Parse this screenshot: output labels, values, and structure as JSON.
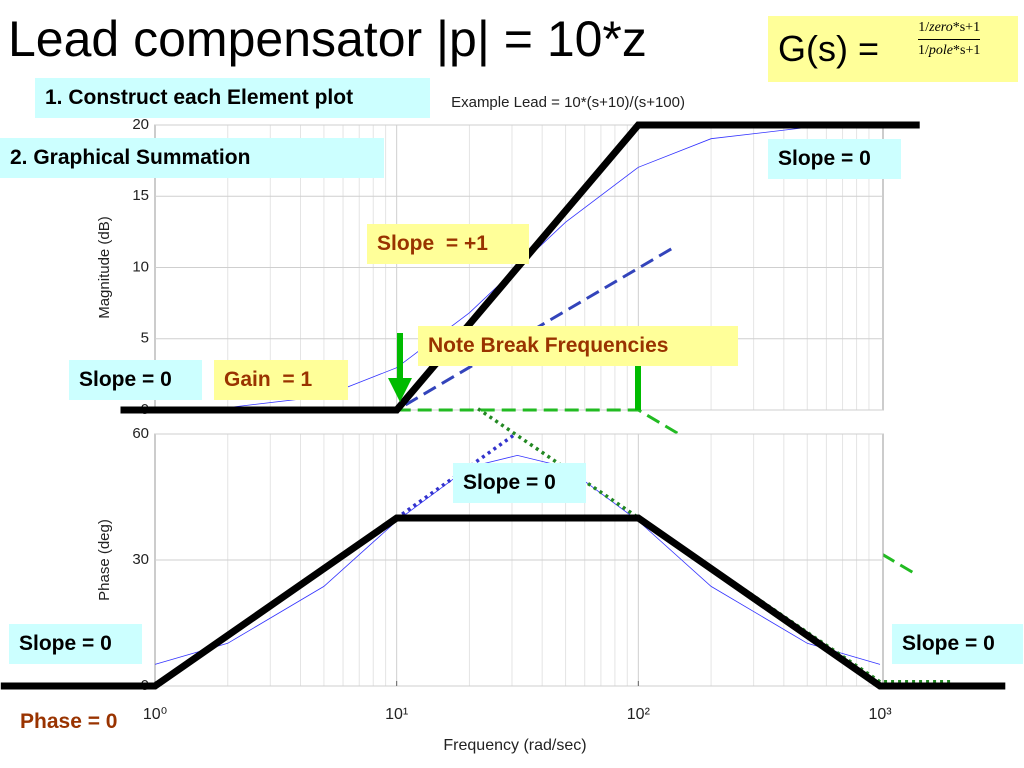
{
  "slide": {
    "title": "Lead compensator |p| = 10*z",
    "formula": {
      "lhs": "G(s) =",
      "numerator": [
        "1",
        "zero",
        "*s+1"
      ],
      "denominator": [
        "1",
        "pole",
        "*s+1"
      ]
    },
    "callouts": [
      "1. Construct each Element plot",
      "2. Graphical Summation",
      "Slope = 0",
      "Slope  = +1",
      "Note Break Frequencies",
      "Slope = 0",
      "Gain  = 1",
      "Slope = 0",
      "Slope = 0",
      "Slope = 0",
      "Phase = 0"
    ]
  },
  "chart_data": [
    {
      "type": "line",
      "title": "Example Lead = 10*(s+10)/(s+100)",
      "ylabel": "Magnitude (dB)",
      "log_x": true,
      "grid": true,
      "xlim": [
        1,
        1000
      ],
      "ylim": [
        0,
        20
      ],
      "yticks": [
        0,
        5,
        10,
        15,
        20
      ],
      "series": [
        {
          "style": "thin",
          "color": "#3333ff",
          "x": [
            1,
            2,
            5,
            10,
            20,
            31.6,
            50,
            100,
            200,
            500,
            1000
          ],
          "values": [
            0.04,
            0.17,
            0.96,
            2.97,
            6.82,
            10.0,
            13.18,
            17.03,
            19.04,
            19.83,
            19.96
          ]
        },
        {
          "style": "dashed",
          "color": "#3344bb",
          "x": [
            1,
            10,
            140
          ],
          "values": [
            0,
            0,
            11.4
          ]
        },
        {
          "style": "dashed",
          "color": "#22bb22",
          "x": [
            10,
            100,
            1370
          ],
          "values": [
            0,
            0,
            -11.4
          ]
        },
        {
          "style": "thick",
          "color": "#000000",
          "x": [
            0.72,
            10,
            100,
            1460
          ],
          "values": [
            0,
            0,
            20,
            20
          ]
        }
      ]
    },
    {
      "type": "line",
      "ylabel": "Phase (deg)",
      "xlabel": "Frequency  (rad/sec)",
      "log_x": true,
      "grid": true,
      "xlim": [
        1,
        1000
      ],
      "ylim": [
        0,
        60
      ],
      "yticks": [
        0,
        30,
        60
      ],
      "xticks": [
        {
          "value": 1,
          "label": "10⁰"
        },
        {
          "value": 10,
          "label": "10¹"
        },
        {
          "value": 100,
          "label": "10²"
        },
        {
          "value": 1000,
          "label": "10³"
        }
      ],
      "series": [
        {
          "style": "thin",
          "color": "#3333ff",
          "x": [
            1,
            2,
            5,
            10,
            20,
            31.6,
            50,
            100,
            200,
            500,
            1000
          ],
          "values": [
            5.14,
            10.16,
            23.71,
            39.29,
            52.12,
            54.9,
            52.12,
            39.29,
            23.71,
            10.16,
            5.14
          ]
        },
        {
          "style": "dotted",
          "color": "#3333cc",
          "x": [
            1,
            10,
            31
          ],
          "values": [
            0,
            40,
            60
          ]
        },
        {
          "style": "dotted",
          "color": "#228822",
          "x": [
            21.7,
            1000,
            1950
          ],
          "values": [
            66,
            1,
            1
          ]
        },
        {
          "style": "thick",
          "color": "#000000",
          "x": [
            0.23,
            1,
            10,
            100,
            1000,
            3300
          ],
          "values": [
            0,
            0,
            40,
            40,
            0,
            0
          ]
        }
      ]
    }
  ]
}
